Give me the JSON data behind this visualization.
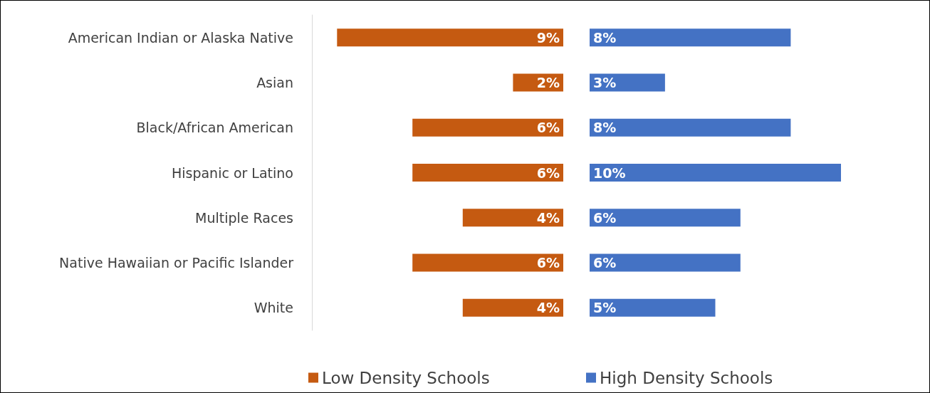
{
  "chart_data": [
    {
      "type": "bar",
      "orientation": "horizontal",
      "categories": [
        "American Indian or Alaska Native",
        "Asian",
        "Black/African American",
        "Hispanic or Latino",
        "Multiple Races",
        "Native Hawaiian or Pacific Islander",
        "White"
      ],
      "xlim": [
        10,
        0
      ],
      "series": [
        {
          "name": "Low Density Schools",
          "color": "#c55a11",
          "values": [
            9,
            2,
            6,
            6,
            4,
            6,
            4
          ],
          "value_labels": [
            "9%",
            "2%",
            "6%",
            "6%",
            "4%",
            "6%",
            "4%"
          ]
        }
      ],
      "legend": "bottom"
    },
    {
      "type": "bar",
      "orientation": "horizontal",
      "categories": [
        null,
        null,
        null,
        null,
        null,
        null,
        null
      ],
      "xlim": [
        0,
        10
      ],
      "series": [
        {
          "name": "High Density Schools",
          "color": "#4472c4",
          "values": [
            8,
            3,
            8,
            10,
            6,
            6,
            5
          ],
          "value_labels": [
            "8%",
            "3%",
            "8%",
            "10%",
            "6%",
            "6%",
            "5%"
          ]
        }
      ],
      "legend": "bottom"
    }
  ]
}
